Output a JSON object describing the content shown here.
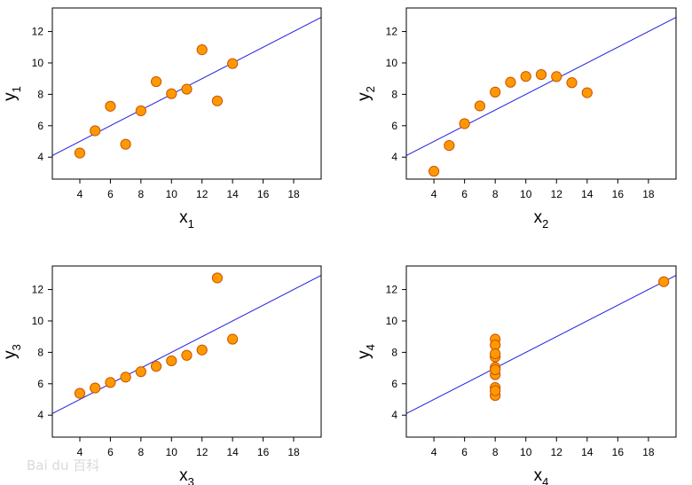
{
  "chart_data": [
    {
      "type": "scatter",
      "xlabel": "x",
      "xlabel_sub": "1",
      "ylabel": "y",
      "ylabel_sub": "1",
      "xlim": [
        2.2,
        19.8
      ],
      "ylim": [
        2.6,
        13.5
      ],
      "xticks": [
        4,
        6,
        8,
        10,
        12,
        14,
        16,
        18
      ],
      "yticks": [
        4,
        6,
        8,
        10,
        12
      ],
      "fit_line": {
        "intercept": 3.0,
        "slope": 0.5
      },
      "points": [
        {
          "x": 10,
          "y": 8.04
        },
        {
          "x": 8,
          "y": 6.95
        },
        {
          "x": 13,
          "y": 7.58
        },
        {
          "x": 9,
          "y": 8.81
        },
        {
          "x": 11,
          "y": 8.33
        },
        {
          "x": 14,
          "y": 9.96
        },
        {
          "x": 6,
          "y": 7.24
        },
        {
          "x": 4,
          "y": 4.26
        },
        {
          "x": 12,
          "y": 10.84
        },
        {
          "x": 7,
          "y": 4.82
        },
        {
          "x": 5,
          "y": 5.68
        }
      ]
    },
    {
      "type": "scatter",
      "xlabel": "x",
      "xlabel_sub": "2",
      "ylabel": "y",
      "ylabel_sub": "2",
      "xlim": [
        2.2,
        19.8
      ],
      "ylim": [
        2.6,
        13.5
      ],
      "xticks": [
        4,
        6,
        8,
        10,
        12,
        14,
        16,
        18
      ],
      "yticks": [
        4,
        6,
        8,
        10,
        12
      ],
      "fit_line": {
        "intercept": 3.0,
        "slope": 0.5
      },
      "points": [
        {
          "x": 10,
          "y": 9.14
        },
        {
          "x": 8,
          "y": 8.14
        },
        {
          "x": 13,
          "y": 8.74
        },
        {
          "x": 9,
          "y": 8.77
        },
        {
          "x": 11,
          "y": 9.26
        },
        {
          "x": 14,
          "y": 8.1
        },
        {
          "x": 6,
          "y": 6.13
        },
        {
          "x": 4,
          "y": 3.1
        },
        {
          "x": 12,
          "y": 9.13
        },
        {
          "x": 7,
          "y": 7.26
        },
        {
          "x": 5,
          "y": 4.74
        }
      ]
    },
    {
      "type": "scatter",
      "xlabel": "x",
      "xlabel_sub": "3",
      "ylabel": "y",
      "ylabel_sub": "3",
      "xlim": [
        2.2,
        19.8
      ],
      "ylim": [
        2.6,
        13.5
      ],
      "xticks": [
        4,
        6,
        8,
        10,
        12,
        14,
        16,
        18
      ],
      "yticks": [
        4,
        6,
        8,
        10,
        12
      ],
      "fit_line": {
        "intercept": 3.0,
        "slope": 0.5
      },
      "points": [
        {
          "x": 10,
          "y": 7.46
        },
        {
          "x": 8,
          "y": 6.77
        },
        {
          "x": 13,
          "y": 12.74
        },
        {
          "x": 9,
          "y": 7.11
        },
        {
          "x": 11,
          "y": 7.81
        },
        {
          "x": 14,
          "y": 8.84
        },
        {
          "x": 6,
          "y": 6.08
        },
        {
          "x": 4,
          "y": 5.39
        },
        {
          "x": 12,
          "y": 8.15
        },
        {
          "x": 7,
          "y": 6.42
        },
        {
          "x": 5,
          "y": 5.73
        }
      ]
    },
    {
      "type": "scatter",
      "xlabel": "x",
      "xlabel_sub": "4",
      "ylabel": "y",
      "ylabel_sub": "4",
      "xlim": [
        2.2,
        19.8
      ],
      "ylim": [
        2.6,
        13.5
      ],
      "xticks": [
        4,
        6,
        8,
        10,
        12,
        14,
        16,
        18
      ],
      "yticks": [
        4,
        6,
        8,
        10,
        12
      ],
      "fit_line": {
        "intercept": 3.0,
        "slope": 0.5
      },
      "points": [
        {
          "x": 8,
          "y": 6.58
        },
        {
          "x": 8,
          "y": 5.76
        },
        {
          "x": 8,
          "y": 7.71
        },
        {
          "x": 8,
          "y": 8.84
        },
        {
          "x": 8,
          "y": 8.47
        },
        {
          "x": 8,
          "y": 7.04
        },
        {
          "x": 8,
          "y": 5.25
        },
        {
          "x": 19,
          "y": 12.5
        },
        {
          "x": 8,
          "y": 5.56
        },
        {
          "x": 8,
          "y": 7.91
        },
        {
          "x": 8,
          "y": 6.89
        }
      ]
    }
  ],
  "watermark": "Bai du 百科"
}
